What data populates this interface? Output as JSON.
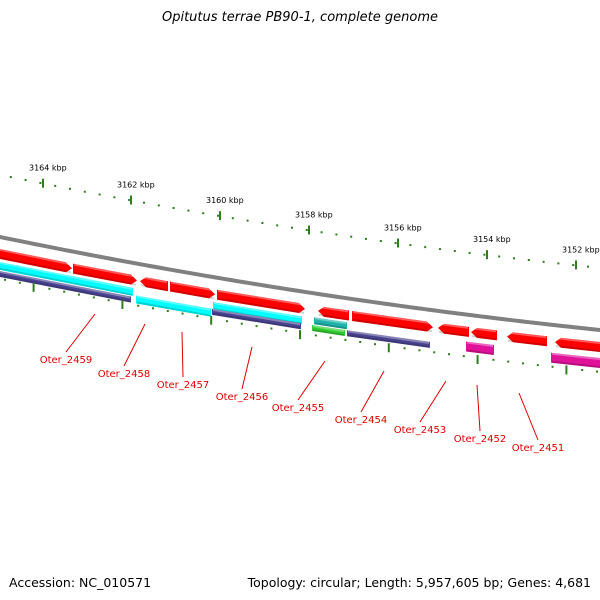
{
  "title": "Opitutus terrae PB90-1, complete genome",
  "footer": {
    "accession": "Accession: NC_010571",
    "topology": "Topology: circular; Length: 5,957,605 bp; Genes: 4,681"
  },
  "colors": {
    "backbone": "#808080",
    "scale_tick": "#2e7d1e",
    "gene_label": "#dd0000",
    "leader_line": "#dd0000",
    "red_gene": "#ff0000",
    "cyan_gene": "#00ffff",
    "purple_gene": "#4a4490",
    "green_gene": "#33cc33",
    "teal_gene": "#20b2aa",
    "magenta_gene": "#e0129a",
    "salmon_gene": "#ff7f7f"
  },
  "scale": {
    "unit": "kbp",
    "major_ticks": [
      {
        "label": "3164 kbp"
      },
      {
        "label": "3162 kbp"
      },
      {
        "label": "3160 kbp"
      },
      {
        "label": "3158 kbp"
      },
      {
        "label": "3156 kbp"
      },
      {
        "label": "3154 kbp"
      },
      {
        "label": "3152 kbp"
      }
    ]
  },
  "genes": [
    {
      "label": "Oter_2459"
    },
    {
      "label": "Oter_2458"
    },
    {
      "label": "Oter_2457"
    },
    {
      "label": "Oter_2456"
    },
    {
      "label": "Oter_2455"
    },
    {
      "label": "Oter_2454"
    },
    {
      "label": "Oter_2453"
    },
    {
      "label": "Oter_2452"
    },
    {
      "label": "Oter_2451"
    }
  ]
}
